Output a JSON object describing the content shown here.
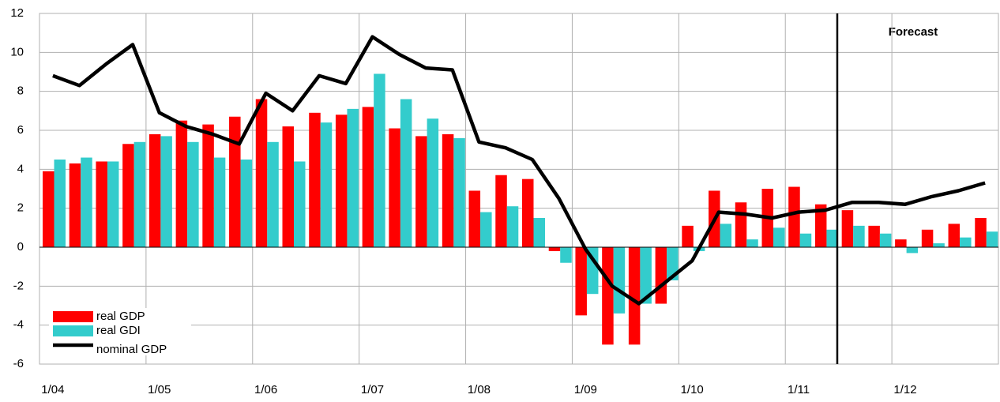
{
  "chart_data": {
    "type": "bar",
    "annotation": "Forecast",
    "categories": [
      "1/04",
      null,
      null,
      null,
      "1/05",
      null,
      null,
      null,
      "1/06",
      null,
      null,
      null,
      "1/07",
      null,
      null,
      null,
      "1/08",
      null,
      null,
      null,
      "1/09",
      null,
      null,
      null,
      "1/10",
      null,
      null,
      null,
      "1/11",
      null,
      null,
      null,
      "1/12",
      null,
      null,
      null
    ],
    "series": [
      {
        "name": "real GDP",
        "type": "bar",
        "color": "#ff0000",
        "values": [
          3.9,
          4.3,
          4.4,
          5.3,
          5.8,
          6.5,
          6.3,
          6.7,
          7.6,
          6.2,
          6.9,
          6.8,
          7.2,
          6.1,
          5.7,
          5.8,
          2.9,
          3.7,
          3.5,
          -0.2,
          -3.5,
          -5.0,
          -5.0,
          -2.9,
          1.1,
          2.9,
          2.3,
          3.0,
          3.1,
          2.2,
          1.9,
          1.1,
          0.4,
          0.9,
          1.2,
          1.5
        ]
      },
      {
        "name": "real GDI",
        "type": "bar",
        "color": "#33cccc",
        "values": [
          4.5,
          4.6,
          4.4,
          5.4,
          5.7,
          5.4,
          4.6,
          4.5,
          5.4,
          4.4,
          6.4,
          7.1,
          8.9,
          7.6,
          6.6,
          5.6,
          1.8,
          2.1,
          1.5,
          -0.8,
          -2.4,
          -3.4,
          -2.9,
          -1.7,
          -0.2,
          1.2,
          0.4,
          1.0,
          0.7,
          0.9,
          1.1,
          0.7,
          -0.3,
          0.2,
          0.5,
          0.8
        ]
      },
      {
        "name": "nominal GDP",
        "type": "line",
        "color": "#000000",
        "values": [
          8.8,
          8.3,
          9.4,
          10.4,
          6.9,
          6.2,
          5.8,
          5.3,
          7.9,
          7.0,
          8.8,
          8.4,
          10.8,
          9.9,
          9.2,
          9.1,
          5.4,
          5.1,
          4.5,
          2.5,
          -0.1,
          -2.0,
          -2.9,
          -1.8,
          -0.7,
          1.8,
          1.7,
          1.5,
          1.8,
          1.9,
          2.3,
          2.3,
          2.2,
          2.6,
          2.9,
          3.3
        ]
      }
    ],
    "ylim": [
      -6,
      12
    ],
    "yticks": [
      -6,
      -4,
      -2,
      0,
      2,
      4,
      6,
      8,
      10,
      12
    ],
    "grid": true
  }
}
